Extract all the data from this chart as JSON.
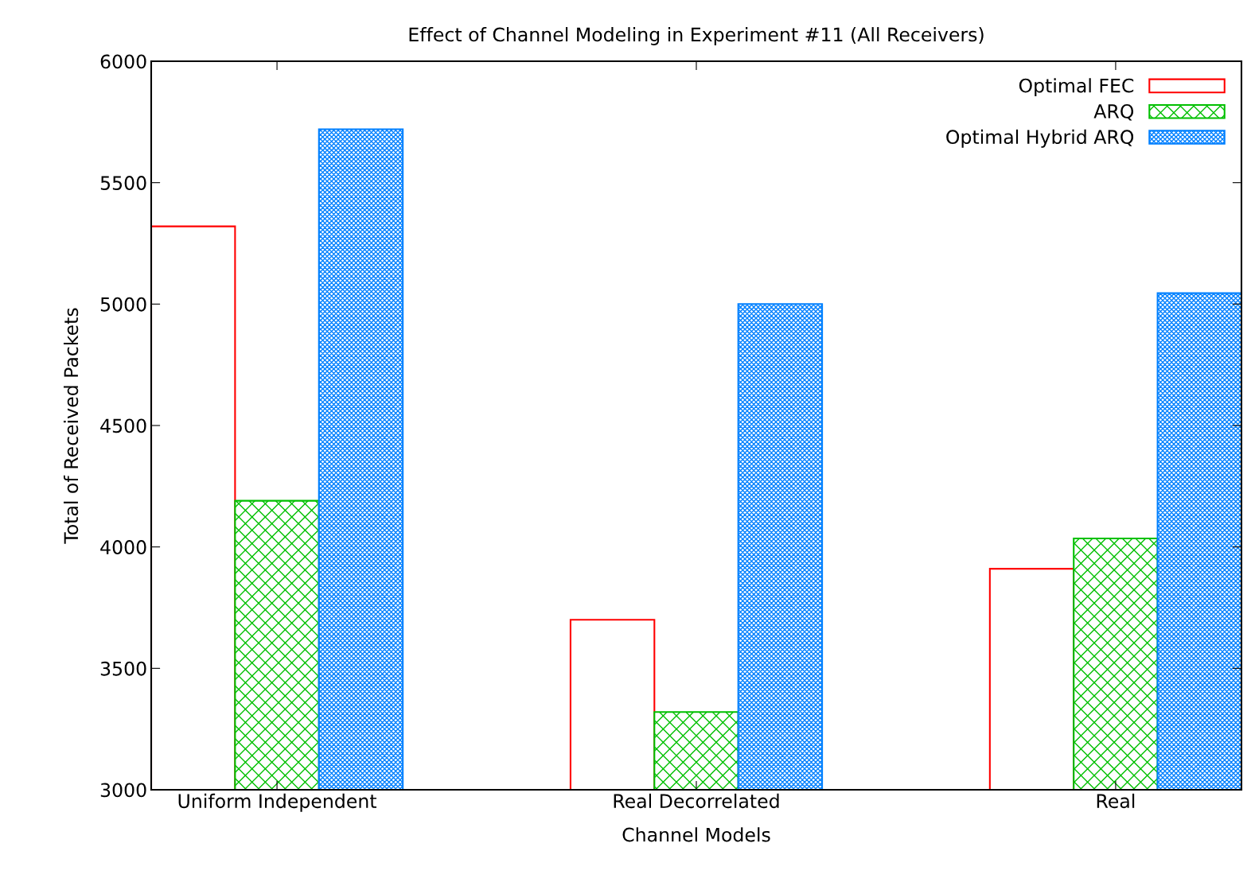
{
  "chart_data": {
    "type": "bar",
    "title": "Effect of Channel Modeling in Experiment #11 (All Receivers)",
    "xlabel": "Channel Models",
    "ylabel": "Total of Received Packets",
    "categories": [
      "Uniform Independent",
      "Real Decorrelated",
      "Real"
    ],
    "series": [
      {
        "name": "Optimal FEC",
        "color": "#ff0000",
        "values": [
          5320,
          3700,
          3910
        ]
      },
      {
        "name": "ARQ",
        "color": "#00c000",
        "values": [
          4190,
          3320,
          4035
        ]
      },
      {
        "name": "Optimal Hybrid ARQ",
        "color": "#0080ff",
        "values": [
          5720,
          5000,
          5045
        ]
      }
    ],
    "ylim": [
      3000,
      6000
    ],
    "yticks": [
      3000,
      3500,
      4000,
      4500,
      5000,
      5500,
      6000
    ],
    "grid": false,
    "legend": "top right"
  }
}
